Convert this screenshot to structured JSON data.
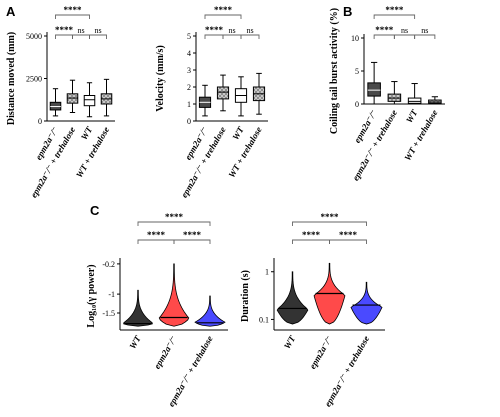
{
  "chart_data": [
    {
      "panel": "A",
      "type": "box",
      "ylabel": "Distance moved (mm)",
      "ylim": [
        0,
        5000
      ],
      "yticks": [
        0,
        2500,
        5000
      ],
      "categories": [
        "epm2a⁻/⁻",
        "epm2a⁻/⁻ + trehalose",
        "WT",
        "WT + trehalose"
      ],
      "fills": [
        "#4a4a4a",
        "#b8b8b8",
        "#ffffff",
        "#d8d8d8"
      ],
      "hatched": [
        false,
        true,
        false,
        true
      ],
      "boxes": [
        {
          "whisker_low": 300,
          "q1": 650,
          "median": 850,
          "q3": 1100,
          "whisker_high": 1900
        },
        {
          "whisker_low": 500,
          "q1": 1050,
          "median": 1350,
          "q3": 1600,
          "whisker_high": 2400
        },
        {
          "whisker_low": 250,
          "q1": 900,
          "median": 1250,
          "q3": 1500,
          "whisker_high": 2250
        },
        {
          "whisker_low": 300,
          "q1": 1000,
          "median": 1300,
          "q3": 1600,
          "whisker_high": 2450
        }
      ],
      "comparisons": [
        {
          "from": 0,
          "to": 2,
          "label": "****"
        },
        {
          "from": 0,
          "to": 1,
          "label": "****"
        },
        {
          "from": 1,
          "to": 2,
          "label": "ns"
        },
        {
          "from": 2,
          "to": 3,
          "label": "ns"
        }
      ]
    },
    {
      "panel": "A2",
      "type": "box",
      "ylabel": "Velocity (mm/s)",
      "ylim": [
        0,
        5
      ],
      "yticks": [
        0,
        1,
        2,
        3,
        4,
        5
      ],
      "categories": [
        "epm2a⁻/⁻",
        "epm2a⁻/⁻ + trehalose",
        "WT",
        "WT + trehalose"
      ],
      "fills": [
        "#4a4a4a",
        "#b8b8b8",
        "#ffffff",
        "#d8d8d8"
      ],
      "hatched": [
        false,
        true,
        false,
        true
      ],
      "boxes": [
        {
          "whisker_low": 0.3,
          "q1": 0.8,
          "median": 1.1,
          "q3": 1.4,
          "whisker_high": 2.1
        },
        {
          "whisker_low": 0.6,
          "q1": 1.3,
          "median": 1.7,
          "q3": 2.0,
          "whisker_high": 2.7
        },
        {
          "whisker_low": 0.3,
          "q1": 1.1,
          "median": 1.5,
          "q3": 1.9,
          "whisker_high": 2.6
        },
        {
          "whisker_low": 0.4,
          "q1": 1.2,
          "median": 1.6,
          "q3": 2.0,
          "whisker_high": 2.8
        }
      ],
      "comparisons": [
        {
          "from": 0,
          "to": 2,
          "label": "****"
        },
        {
          "from": 0,
          "to": 1,
          "label": "****"
        },
        {
          "from": 1,
          "to": 2,
          "label": "ns"
        },
        {
          "from": 2,
          "to": 3,
          "label": "ns"
        }
      ]
    },
    {
      "panel": "B",
      "type": "box",
      "ylabel": "Coiling tail burst activity (%)",
      "ylim": [
        0,
        10
      ],
      "yticks": [
        0,
        5,
        10
      ],
      "categories": [
        "epm2a⁻/⁻",
        "epm2a⁻/⁻ + trehalose",
        "WT",
        "WT + trehalose"
      ],
      "fills": [
        "#4a4a4a",
        "#b8b8b8",
        "#ffffff",
        "#d8d8d8"
      ],
      "hatched": [
        false,
        true,
        false,
        true
      ],
      "boxes": [
        {
          "whisker_low": 0.0,
          "q1": 1.2,
          "median": 2.1,
          "q3": 3.2,
          "whisker_high": 6.3
        },
        {
          "whisker_low": 0.0,
          "q1": 0.4,
          "median": 0.9,
          "q3": 1.5,
          "whisker_high": 3.4
        },
        {
          "whisker_low": 0.0,
          "q1": 0.1,
          "median": 0.4,
          "q3": 0.9,
          "whisker_high": 3.1
        },
        {
          "whisker_low": 0.0,
          "q1": 0.1,
          "median": 0.3,
          "q3": 0.6,
          "whisker_high": 1.1
        }
      ],
      "comparisons": [
        {
          "from": 0,
          "to": 2,
          "label": "****"
        },
        {
          "from": 0,
          "to": 1,
          "label": "****"
        },
        {
          "from": 1,
          "to": 2,
          "label": "ns"
        },
        {
          "from": 2,
          "to": 3,
          "label": "ns"
        }
      ]
    },
    {
      "panel": "C",
      "type": "violin",
      "ylabel": "Log₁₀(γ power)",
      "ylim": [
        -1.95,
        -0.15
      ],
      "yticks": [
        -0.2,
        -1,
        -1.5
      ],
      "ytick_labels": [
        "-0.2",
        "-1",
        "-1.5"
      ],
      "categories": [
        "WT",
        "epm2a⁻/⁻",
        "epm2a⁻/⁻ + trehalose"
      ],
      "fills": [
        "#333333",
        "#ff4a4a",
        "#4a4aff"
      ],
      "violins": [
        {
          "top": -0.9,
          "bottom": -1.85,
          "median": -1.78,
          "peak": -1.78
        },
        {
          "top": -0.2,
          "bottom": -1.85,
          "median": -1.62,
          "peak": -1.65
        },
        {
          "top": -1.05,
          "bottom": -1.85,
          "median": -1.76,
          "peak": -1.75
        }
      ],
      "comparisons": [
        {
          "from": 0,
          "to": 2,
          "label": "****"
        },
        {
          "from": 0,
          "to": 1,
          "label": "****"
        },
        {
          "from": 1,
          "to": 2,
          "label": "****"
        }
      ]
    },
    {
      "panel": "C2",
      "type": "violin",
      "ylabel": "Duration (s)",
      "yscale": "log",
      "ylim": [
        0.06,
        1.6
      ],
      "yticks": [
        0.1,
        1
      ],
      "ytick_labels": [
        "0.1",
        "1"
      ],
      "categories": [
        "WT",
        "epm2a⁻/⁻",
        "epm2a⁻/⁻ + trehalose"
      ],
      "fills": [
        "#333333",
        "#ff4a4a",
        "#4a4aff"
      ],
      "violins": [
        {
          "top": 1.0,
          "bottom": 0.08,
          "median": 0.17,
          "peak": 0.16
        },
        {
          "top": 1.5,
          "bottom": 0.08,
          "median": 0.35,
          "peak": 0.32
        },
        {
          "top": 0.6,
          "bottom": 0.08,
          "median": 0.2,
          "peak": 0.18
        }
      ],
      "comparisons": [
        {
          "from": 0,
          "to": 2,
          "label": "****"
        },
        {
          "from": 0,
          "to": 1,
          "label": "****"
        },
        {
          "from": 1,
          "to": 2,
          "label": "****"
        }
      ]
    }
  ],
  "panel_labels": {
    "a": "A",
    "b": "B",
    "c": "C"
  }
}
